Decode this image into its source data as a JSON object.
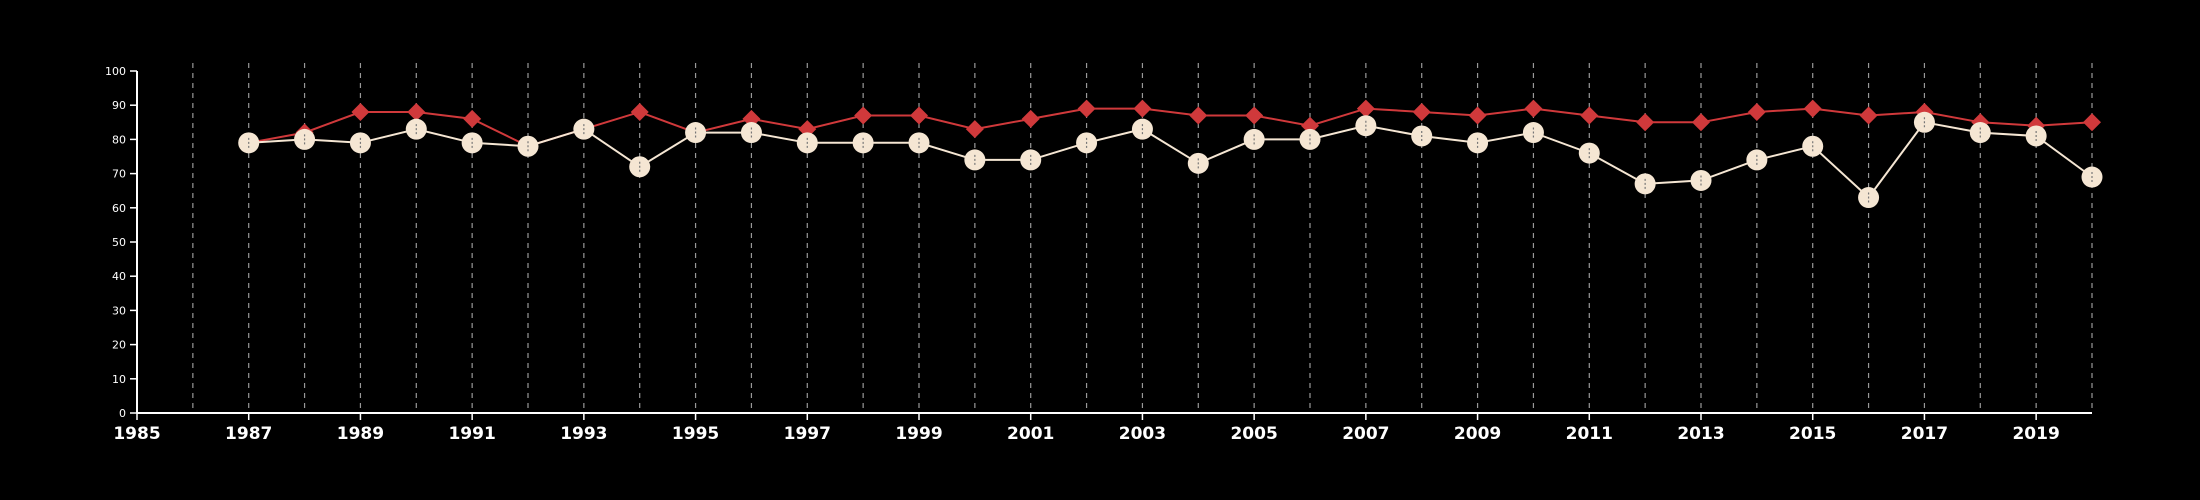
{
  "chart_data": {
    "type": "line",
    "title": "",
    "xlabel": "",
    "ylabel": "",
    "xlim": [
      1985,
      2020
    ],
    "ylim": [
      0,
      100
    ],
    "x_tick_labels": [
      "1985",
      "1987",
      "1989",
      "1991",
      "1993",
      "1995",
      "1997",
      "1999",
      "2001",
      "2003",
      "2005",
      "2007",
      "2009",
      "2011",
      "2013",
      "2015",
      "2017",
      "2019"
    ],
    "y_tick_labels": [
      "0",
      "10",
      "20",
      "30",
      "40",
      "50",
      "60",
      "70",
      "80",
      "90",
      "100"
    ],
    "grid": "vertical dashed lines at every year",
    "legend": "none",
    "background_color": "#000000",
    "series": [
      {
        "color": "#d0393b",
        "marker": "diamond",
        "x": [
          1987,
          1988,
          1989,
          1990,
          1991,
          1992,
          1993,
          1994,
          1995,
          1996,
          1997,
          1998,
          1999,
          2000,
          2001,
          2002,
          2003,
          2004,
          2005,
          2006,
          2007,
          2008,
          2009,
          2010,
          2011,
          2012,
          2013,
          2014,
          2015,
          2016,
          2017,
          2018,
          2019,
          2020
        ],
        "values": [
          79,
          82,
          88,
          88,
          86,
          78,
          83,
          88,
          82,
          86,
          83,
          87,
          87,
          83,
          86,
          89,
          89,
          87,
          87,
          84,
          89,
          88,
          87,
          89,
          87,
          85,
          85,
          88,
          89,
          87,
          88,
          85,
          84,
          85
        ]
      },
      {
        "color": "#f5e6d3",
        "marker": "circle",
        "x": [
          1987,
          1988,
          1989,
          1990,
          1991,
          1992,
          1993,
          1994,
          1995,
          1996,
          1997,
          1998,
          1999,
          2000,
          2001,
          2002,
          2003,
          2004,
          2005,
          2006,
          2007,
          2008,
          2009,
          2010,
          2011,
          2012,
          2013,
          2014,
          2015,
          2016,
          2017,
          2018,
          2019,
          2020
        ],
        "values": [
          79,
          80,
          79,
          83,
          79,
          78,
          83,
          72,
          82,
          82,
          79,
          79,
          79,
          74,
          74,
          79,
          83,
          73,
          80,
          80,
          84,
          81,
          79,
          82,
          76,
          67,
          68,
          74,
          78,
          63,
          85,
          82,
          81,
          69
        ]
      }
    ]
  }
}
